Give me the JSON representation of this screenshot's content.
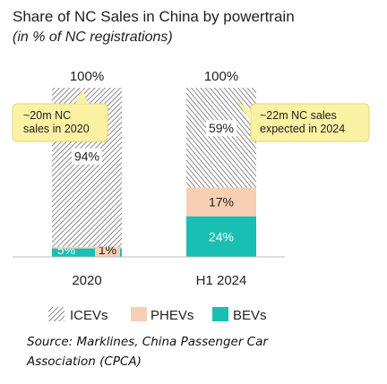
{
  "chart_data": {
    "type": "bar",
    "stacked": true,
    "title": "Share of NC Sales in China by powertrain",
    "subtitle": "(in % of NC registrations)",
    "categories": [
      "2020",
      "H1 2024"
    ],
    "totals": [
      "100%",
      "100%"
    ],
    "ylim": [
      0,
      100
    ],
    "series": [
      {
        "name": "BEVs",
        "color": "#1abfb3",
        "values": [
          5,
          24
        ],
        "labels": [
          "5%",
          "24%"
        ],
        "pattern": "solid"
      },
      {
        "name": "PHEVs",
        "color": "#f7cfb3",
        "values": [
          1,
          17
        ],
        "labels": [
          "1%",
          "17%"
        ],
        "pattern": "solid"
      },
      {
        "name": "ICEVs",
        "color": "#777777",
        "values": [
          94,
          59
        ],
        "labels": [
          "94%",
          "59%"
        ],
        "pattern": "hatch"
      }
    ],
    "annotations": [
      {
        "category": "2020",
        "lines": [
          "~20m NC",
          "sales in 2020"
        ]
      },
      {
        "category": "H1 2024",
        "lines": [
          "~22m NC sales",
          "expected in 2024"
        ]
      }
    ],
    "legend": {
      "position": "bottom",
      "items": [
        "ICEVs",
        "PHEVs",
        "BEVs"
      ]
    }
  },
  "source": {
    "lines": [
      "Source: Marklines, China Passenger Car",
      "Association (CPCA)"
    ]
  }
}
